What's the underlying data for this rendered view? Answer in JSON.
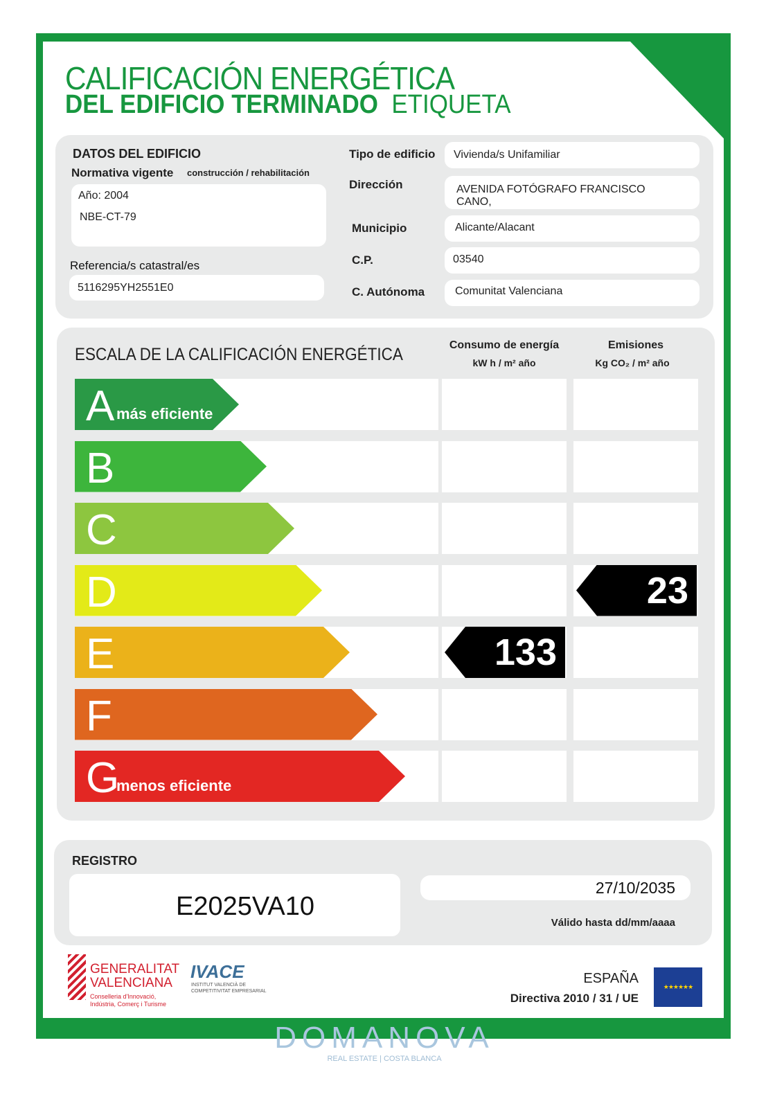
{
  "title": {
    "line1": "CALIFICACIÓN ENERGÉTICA",
    "line2a": "DEL EDIFICIO  TERMINADO",
    "line2b": "ETIQUETA"
  },
  "datos": {
    "heading": "DATOS DEL EDIFICIO",
    "normativa_label": "Normativa vigente",
    "normativa_sub": "construcción / rehabilitación",
    "anio": "Año: 2004",
    "norma": "NBE-CT-79",
    "ref_label": "Referencia/s catastral/es",
    "ref_value": "5116295YH2551E0",
    "tipo_label": "Tipo de edificio",
    "tipo_value": "Vivienda/s Unifamiliar",
    "dir_label": "Dirección",
    "dir_value1": "AVENIDA FOTÓGRAFO FRANCISCO",
    "dir_value2": "CANO,",
    "mun_label": "Municipio",
    "mun_value": "Alicante/Alacant",
    "cp_label": "C.P.",
    "cp_value": "03540",
    "ca_label": "C. Autónoma",
    "ca_value": "Comunitat Valenciana"
  },
  "escala": {
    "heading": "ESCALA DE LA CALIFICACIÓN ENERGÉTICA",
    "consumo_label": "Consumo de energía",
    "consumo_unit": "kW h / m² año",
    "emis_label": "Emisiones",
    "emis_unit": "Kg CO₂ / m² año",
    "classes": [
      {
        "letter": "A",
        "sub": "más eficiente",
        "color": "#2a9946"
      },
      {
        "letter": "B",
        "sub": "",
        "color": "#3db53c"
      },
      {
        "letter": "C",
        "sub": "",
        "color": "#8dc63f"
      },
      {
        "letter": "D",
        "sub": "",
        "color": "#e3ea18"
      },
      {
        "letter": "E",
        "sub": "",
        "color": "#ebb21a"
      },
      {
        "letter": "F",
        "sub": "",
        "color": "#df661f"
      },
      {
        "letter": "G",
        "sub": "menos eficiente",
        "color": "#e32723"
      }
    ],
    "consumo": {
      "class": "E",
      "value": "133"
    },
    "emisiones": {
      "class": "D",
      "value": "23"
    }
  },
  "registro": {
    "label": "REGISTRO",
    "value": "E2025VA10",
    "fecha": "27/10/2035",
    "valido": "Válido hasta dd/mm/aaaa"
  },
  "footer": {
    "gva1": "GENERALITAT",
    "gva2": "VALENCIANA",
    "gva3": "Conselleria d'Innovació,",
    "gva4": "Indústria, Comerç i Turisme",
    "ivace": "IVACE",
    "ivace_sub1": "INSTITUT VALENCIÀ DE",
    "ivace_sub2": "COMPETITIVITAT EMPRESARIAL",
    "pais": "ESPAÑA",
    "directiva": "Directiva 2010 / 31 / UE"
  },
  "watermark": {
    "brand": "DOMANOVA",
    "tag1": "REAL ESTATE",
    "tag2": "COSTA BLANCA"
  }
}
